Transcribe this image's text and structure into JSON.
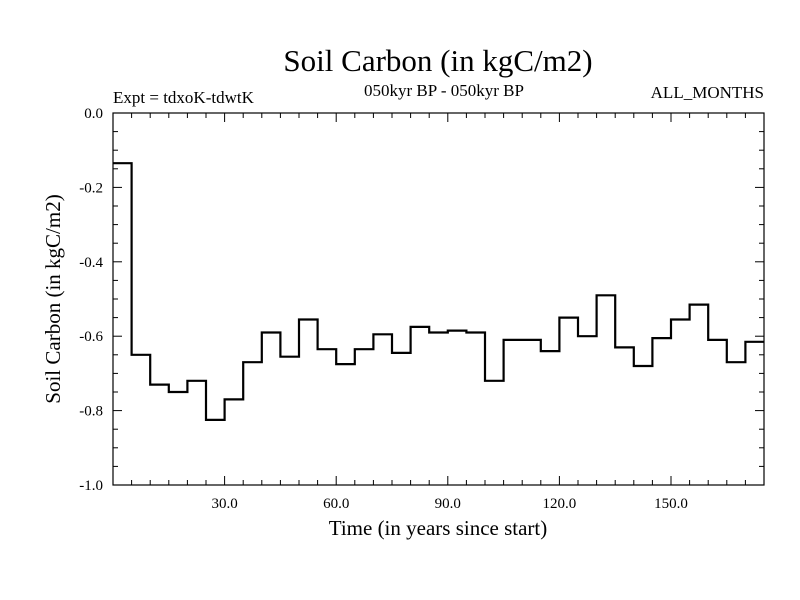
{
  "chart_data": {
    "type": "line",
    "step": true,
    "title": "Soil Carbon (in kgC/m2)",
    "subtitle_left": "Expt = tdxoK-tdwtK",
    "subtitle_center": "050kyr BP - 050kyr BP",
    "subtitle_right": "ALL_MONTHS",
    "xlabel": "Time (in years since start)",
    "ylabel": "Soil Carbon (in kgC/m2)",
    "xlim": [
      0,
      175
    ],
    "ylim": [
      -1.0,
      0.0
    ],
    "x_ticks": [
      {
        "value": 30,
        "label": "30.0"
      },
      {
        "value": 60,
        "label": "60.0"
      },
      {
        "value": 90,
        "label": "90.0"
      },
      {
        "value": 120,
        "label": "120.0"
      },
      {
        "value": 150,
        "label": "150.0"
      }
    ],
    "y_ticks": [
      {
        "value": 0.0,
        "label": "0.0"
      },
      {
        "value": -0.2,
        "label": "-0.2"
      },
      {
        "value": -0.4,
        "label": "-0.4"
      },
      {
        "value": -0.6,
        "label": "-0.6"
      },
      {
        "value": -0.8,
        "label": "-0.8"
      },
      {
        "value": -1.0,
        "label": "-1.0"
      }
    ],
    "series": [
      {
        "points": [
          [
            0,
            -0.135
          ],
          [
            5,
            -0.65
          ],
          [
            10,
            -0.73
          ],
          [
            15,
            -0.75
          ],
          [
            20,
            -0.72
          ],
          [
            25,
            -0.825
          ],
          [
            30,
            -0.77
          ],
          [
            35,
            -0.67
          ],
          [
            40,
            -0.59
          ],
          [
            45,
            -0.655
          ],
          [
            50,
            -0.555
          ],
          [
            55,
            -0.635
          ],
          [
            60,
            -0.675
          ],
          [
            65,
            -0.635
          ],
          [
            70,
            -0.595
          ],
          [
            75,
            -0.645
          ],
          [
            80,
            -0.575
          ],
          [
            85,
            -0.59
          ],
          [
            90,
            -0.585
          ],
          [
            95,
            -0.59
          ],
          [
            100,
            -0.72
          ],
          [
            105,
            -0.61
          ],
          [
            110,
            -0.61
          ],
          [
            115,
            -0.64
          ],
          [
            120,
            -0.55
          ],
          [
            125,
            -0.6
          ],
          [
            130,
            -0.49
          ],
          [
            135,
            -0.63
          ],
          [
            140,
            -0.68
          ],
          [
            145,
            -0.605
          ],
          [
            150,
            -0.555
          ],
          [
            155,
            -0.515
          ],
          [
            160,
            -0.61
          ],
          [
            165,
            -0.67
          ],
          [
            170,
            -0.615
          ]
        ]
      }
    ]
  }
}
